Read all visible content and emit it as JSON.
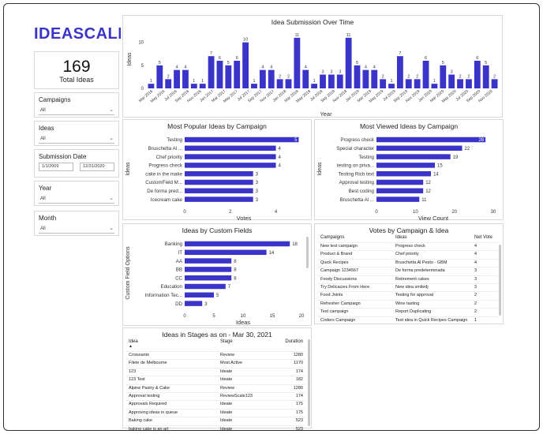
{
  "brand": {
    "logo_text": "IDEASCALE",
    "color": "#3b34c8"
  },
  "kpi": {
    "value": "169",
    "label": "Total Ideas"
  },
  "filters": {
    "campaigns": {
      "label": "Campaigns",
      "value": "All"
    },
    "ideas": {
      "label": "Ideas",
      "value": "All"
    },
    "submission_date": {
      "label": "Submission Date",
      "start": "1/1/2009",
      "end": "12/31/2020"
    },
    "year": {
      "label": "Year",
      "value": "All"
    },
    "month": {
      "label": "Month",
      "value": "All"
    }
  },
  "submission_chart": {
    "title": "Idea Submission Over Time",
    "xlabel": "Year",
    "ylabel": "Ideas",
    "yticks": [
      0,
      5,
      10
    ],
    "values": [
      1,
      5,
      2,
      4,
      4,
      1,
      1,
      7,
      6,
      5,
      6,
      10,
      1,
      4,
      4,
      2,
      2,
      11,
      4,
      1,
      3,
      3,
      3,
      11,
      5,
      4,
      4,
      2,
      1,
      7,
      2,
      2,
      6,
      1,
      5,
      3,
      2,
      2,
      6,
      5,
      2
    ],
    "date_labels": [
      "Mar 2016",
      "May 2016",
      "Jul 2016",
      "Sep 2016",
      "Nov 2016",
      "Jan 2017",
      "Mar 2017",
      "May 2017",
      "Jul 2017",
      "Sep 2017",
      "Nov 2017",
      "Jan 2018",
      "Mar 2018",
      "May 2018",
      "Jul 2018",
      "Sep 2018",
      "Nov 2018",
      "Jan 2019",
      "Mar 2019",
      "May 2019",
      "Jul 2019",
      "Sep 2019",
      "Nov 2019",
      "Jan 2020",
      "Mar 2020",
      "May 2020",
      "Jul 2020",
      "Sep 2020",
      "Nov 2020"
    ]
  },
  "popular_chart": {
    "title": "Most Popular Ideas by Campaign",
    "xlabel": "Votes",
    "ylabel": "Ideas",
    "xticks": [
      0,
      2,
      4
    ],
    "xmax": 5.4,
    "categories": [
      "Testing",
      "Bruschetta Al ...",
      "Chef priority",
      "Progress check",
      "cake in the make",
      "CustomField M...",
      "De forma pred...",
      "Icecream cake"
    ],
    "values": [
      5,
      4,
      4,
      4,
      3,
      3,
      3,
      3
    ]
  },
  "viewed_chart": {
    "title": "Most Viewed Ideas by Campaign",
    "xlabel": "View Count",
    "ylabel": "Ideas",
    "xticks": [
      0,
      10,
      20,
      30
    ],
    "xmax": 30,
    "categories": [
      "Progress check",
      "Special character",
      "Testing",
      "testing on priva...",
      "Testing Rich text",
      "Approval testing",
      "Best coding",
      "Bruschetta Al ..."
    ],
    "values": [
      28,
      22,
      19,
      15,
      14,
      12,
      12,
      11
    ]
  },
  "custom_chart": {
    "title": "Ideas by Custom Fields",
    "xlabel": "Ideas",
    "ylabel": "Custom Field Options",
    "xticks": [
      0,
      5,
      10,
      15,
      20
    ],
    "xmax": 20,
    "categories": [
      "Banking",
      "IT",
      "AA",
      "BB",
      "CC",
      "Education",
      "Information Tec...",
      "DD"
    ],
    "values": [
      18,
      14,
      8,
      8,
      8,
      7,
      5,
      3
    ]
  },
  "votes_table": {
    "title": "Votes by Campaign & Idea",
    "columns": [
      "Campaigns",
      "Ideas",
      "Net Vote"
    ],
    "rows": [
      [
        "New test campaign",
        "Progress check",
        "4"
      ],
      [
        "Product & Brand",
        "Chef priority",
        "4"
      ],
      [
        "Quick Recipes",
        "Bruschetta Al Pesto - GBM",
        "4"
      ],
      [
        "Campaign 1234567",
        "De forma predeterminada",
        "3"
      ],
      [
        "Foody Discussions",
        "Retirement cakes",
        "3"
      ],
      [
        "Try Delicacies From Here",
        "New idea smiledj",
        "3"
      ],
      [
        "Food Joints",
        "Testing for approval",
        "2"
      ],
      [
        "Refresher Campaign",
        "Wine tasting",
        "2"
      ],
      [
        "Test campaign",
        "Report Duplicating",
        "2"
      ],
      [
        "Coders Campaign",
        "Test idea in Quick Recipes Campaign",
        "1"
      ]
    ]
  },
  "stages_table": {
    "title": "Ideas in Stages as on - Mar 30, 2021",
    "columns": [
      "Idea",
      "Stage",
      "Duration"
    ],
    "rows": [
      [
        "Croissants",
        "Review",
        "1280"
      ],
      [
        "Filete de Melbourne",
        "Most Active",
        "1170"
      ],
      [
        "123",
        "Ideate",
        "174"
      ],
      [
        "123 Test",
        "Ideate",
        "182"
      ],
      [
        "Alpine Pastry & Cake",
        "Review",
        "1280"
      ],
      [
        "Approval testing",
        "ReviewScale123",
        "174"
      ],
      [
        "Approvals Required",
        "Ideate",
        "175"
      ],
      [
        "Approving ideas in queue",
        "Ideate",
        "175"
      ],
      [
        "Baking cake",
        "Ideate",
        "523"
      ],
      [
        "baking cake is an art",
        "Ideate",
        "523"
      ]
    ]
  }
}
